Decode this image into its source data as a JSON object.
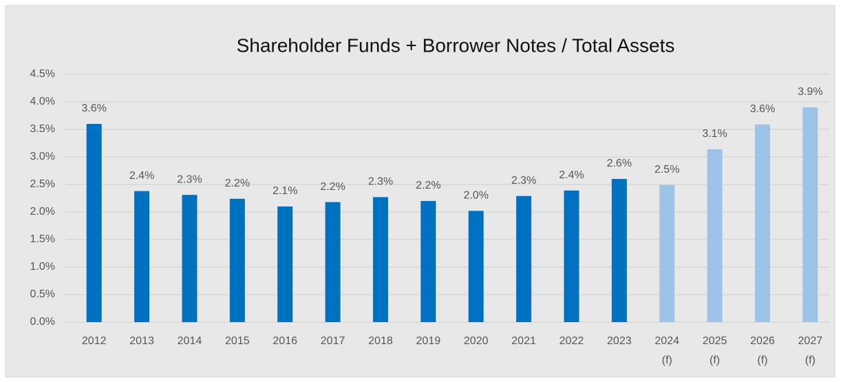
{
  "chart_data": {
    "type": "bar",
    "title": "Shareholder Funds + Borrower Notes / Total Assets",
    "categories": [
      "2012",
      "2013",
      "2014",
      "2015",
      "2016",
      "2017",
      "2018",
      "2019",
      "2020",
      "2021",
      "2022",
      "2023",
      "2024 (f)",
      "2025 (f)",
      "2026 (f)",
      "2027 (f)"
    ],
    "values": [
      3.6,
      2.38,
      2.31,
      2.24,
      2.1,
      2.18,
      2.27,
      2.2,
      2.02,
      2.29,
      2.39,
      2.6,
      2.49,
      3.14,
      3.59,
      3.9
    ],
    "value_labels": [
      "3.6%",
      "2.4%",
      "2.3%",
      "2.2%",
      "2.1%",
      "2.2%",
      "2.3%",
      "2.2%",
      "2.0%",
      "2.3%",
      "2.4%",
      "2.6%",
      "2.5%",
      "3.1%",
      "3.6%",
      "3.9%"
    ],
    "colors": [
      "#0070c0",
      "#0070c0",
      "#0070c0",
      "#0070c0",
      "#0070c0",
      "#0070c0",
      "#0070c0",
      "#0070c0",
      "#0070c0",
      "#0070c0",
      "#0070c0",
      "#0070c0",
      "#9dc3e6",
      "#9dc3e6",
      "#9dc3e6",
      "#9dc3e6"
    ],
    "ylim": [
      0,
      4.5
    ],
    "yticks": [
      {
        "value": 0,
        "label": "0.0%"
      },
      {
        "value": 0.5,
        "label": "0.5%"
      },
      {
        "value": 1,
        "label": "1.0%"
      },
      {
        "value": 1.5,
        "label": "1.5%"
      },
      {
        "value": 2,
        "label": "2.0%"
      },
      {
        "value": 2.5,
        "label": "2.5%"
      },
      {
        "value": 3,
        "label": "3.0%"
      },
      {
        "value": 3.5,
        "label": "3.5%"
      },
      {
        "value": 4,
        "label": "4.0%"
      },
      {
        "value": 4.5,
        "label": "4.5%"
      }
    ],
    "grid": true
  }
}
